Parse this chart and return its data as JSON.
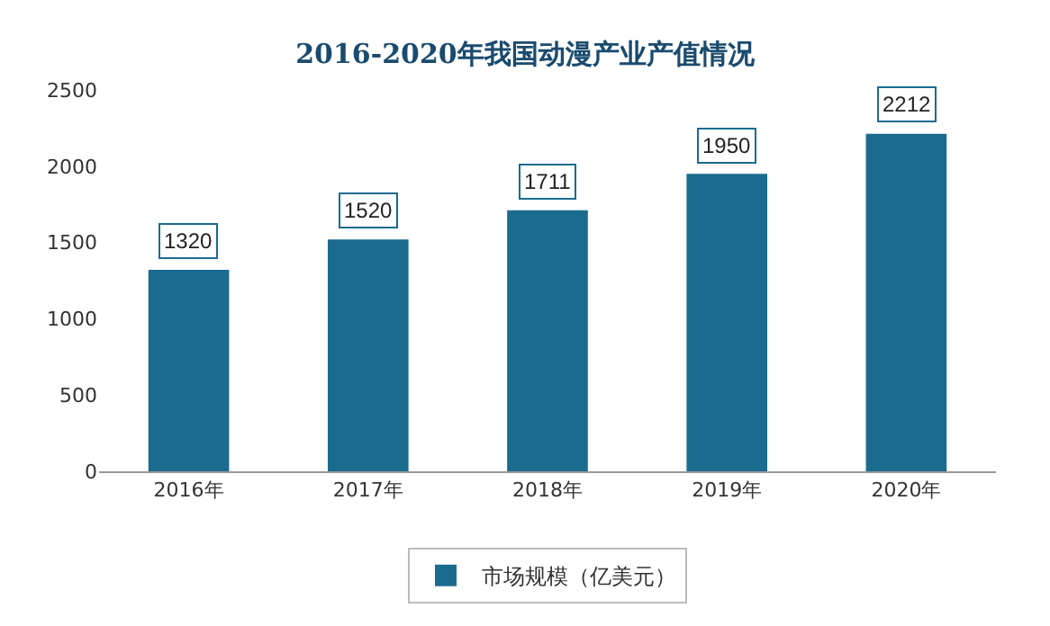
{
  "chart_data": {
    "type": "bar",
    "title": "2016-2020年我国动漫产业产值情况",
    "categories": [
      "2016年",
      "2017年",
      "2018年",
      "2019年",
      "2020年"
    ],
    "series": [
      {
        "name": "市场规模（亿美元）",
        "color": "#1b6b8e",
        "values": [
          1320,
          1520,
          1711,
          1950,
          2212
        ]
      }
    ],
    "ylim": [
      0,
      2500
    ],
    "yticks": [
      0,
      500,
      1000,
      1500,
      2000,
      2500
    ],
    "grid": false,
    "legend": "bottom",
    "data_labels": true
  }
}
